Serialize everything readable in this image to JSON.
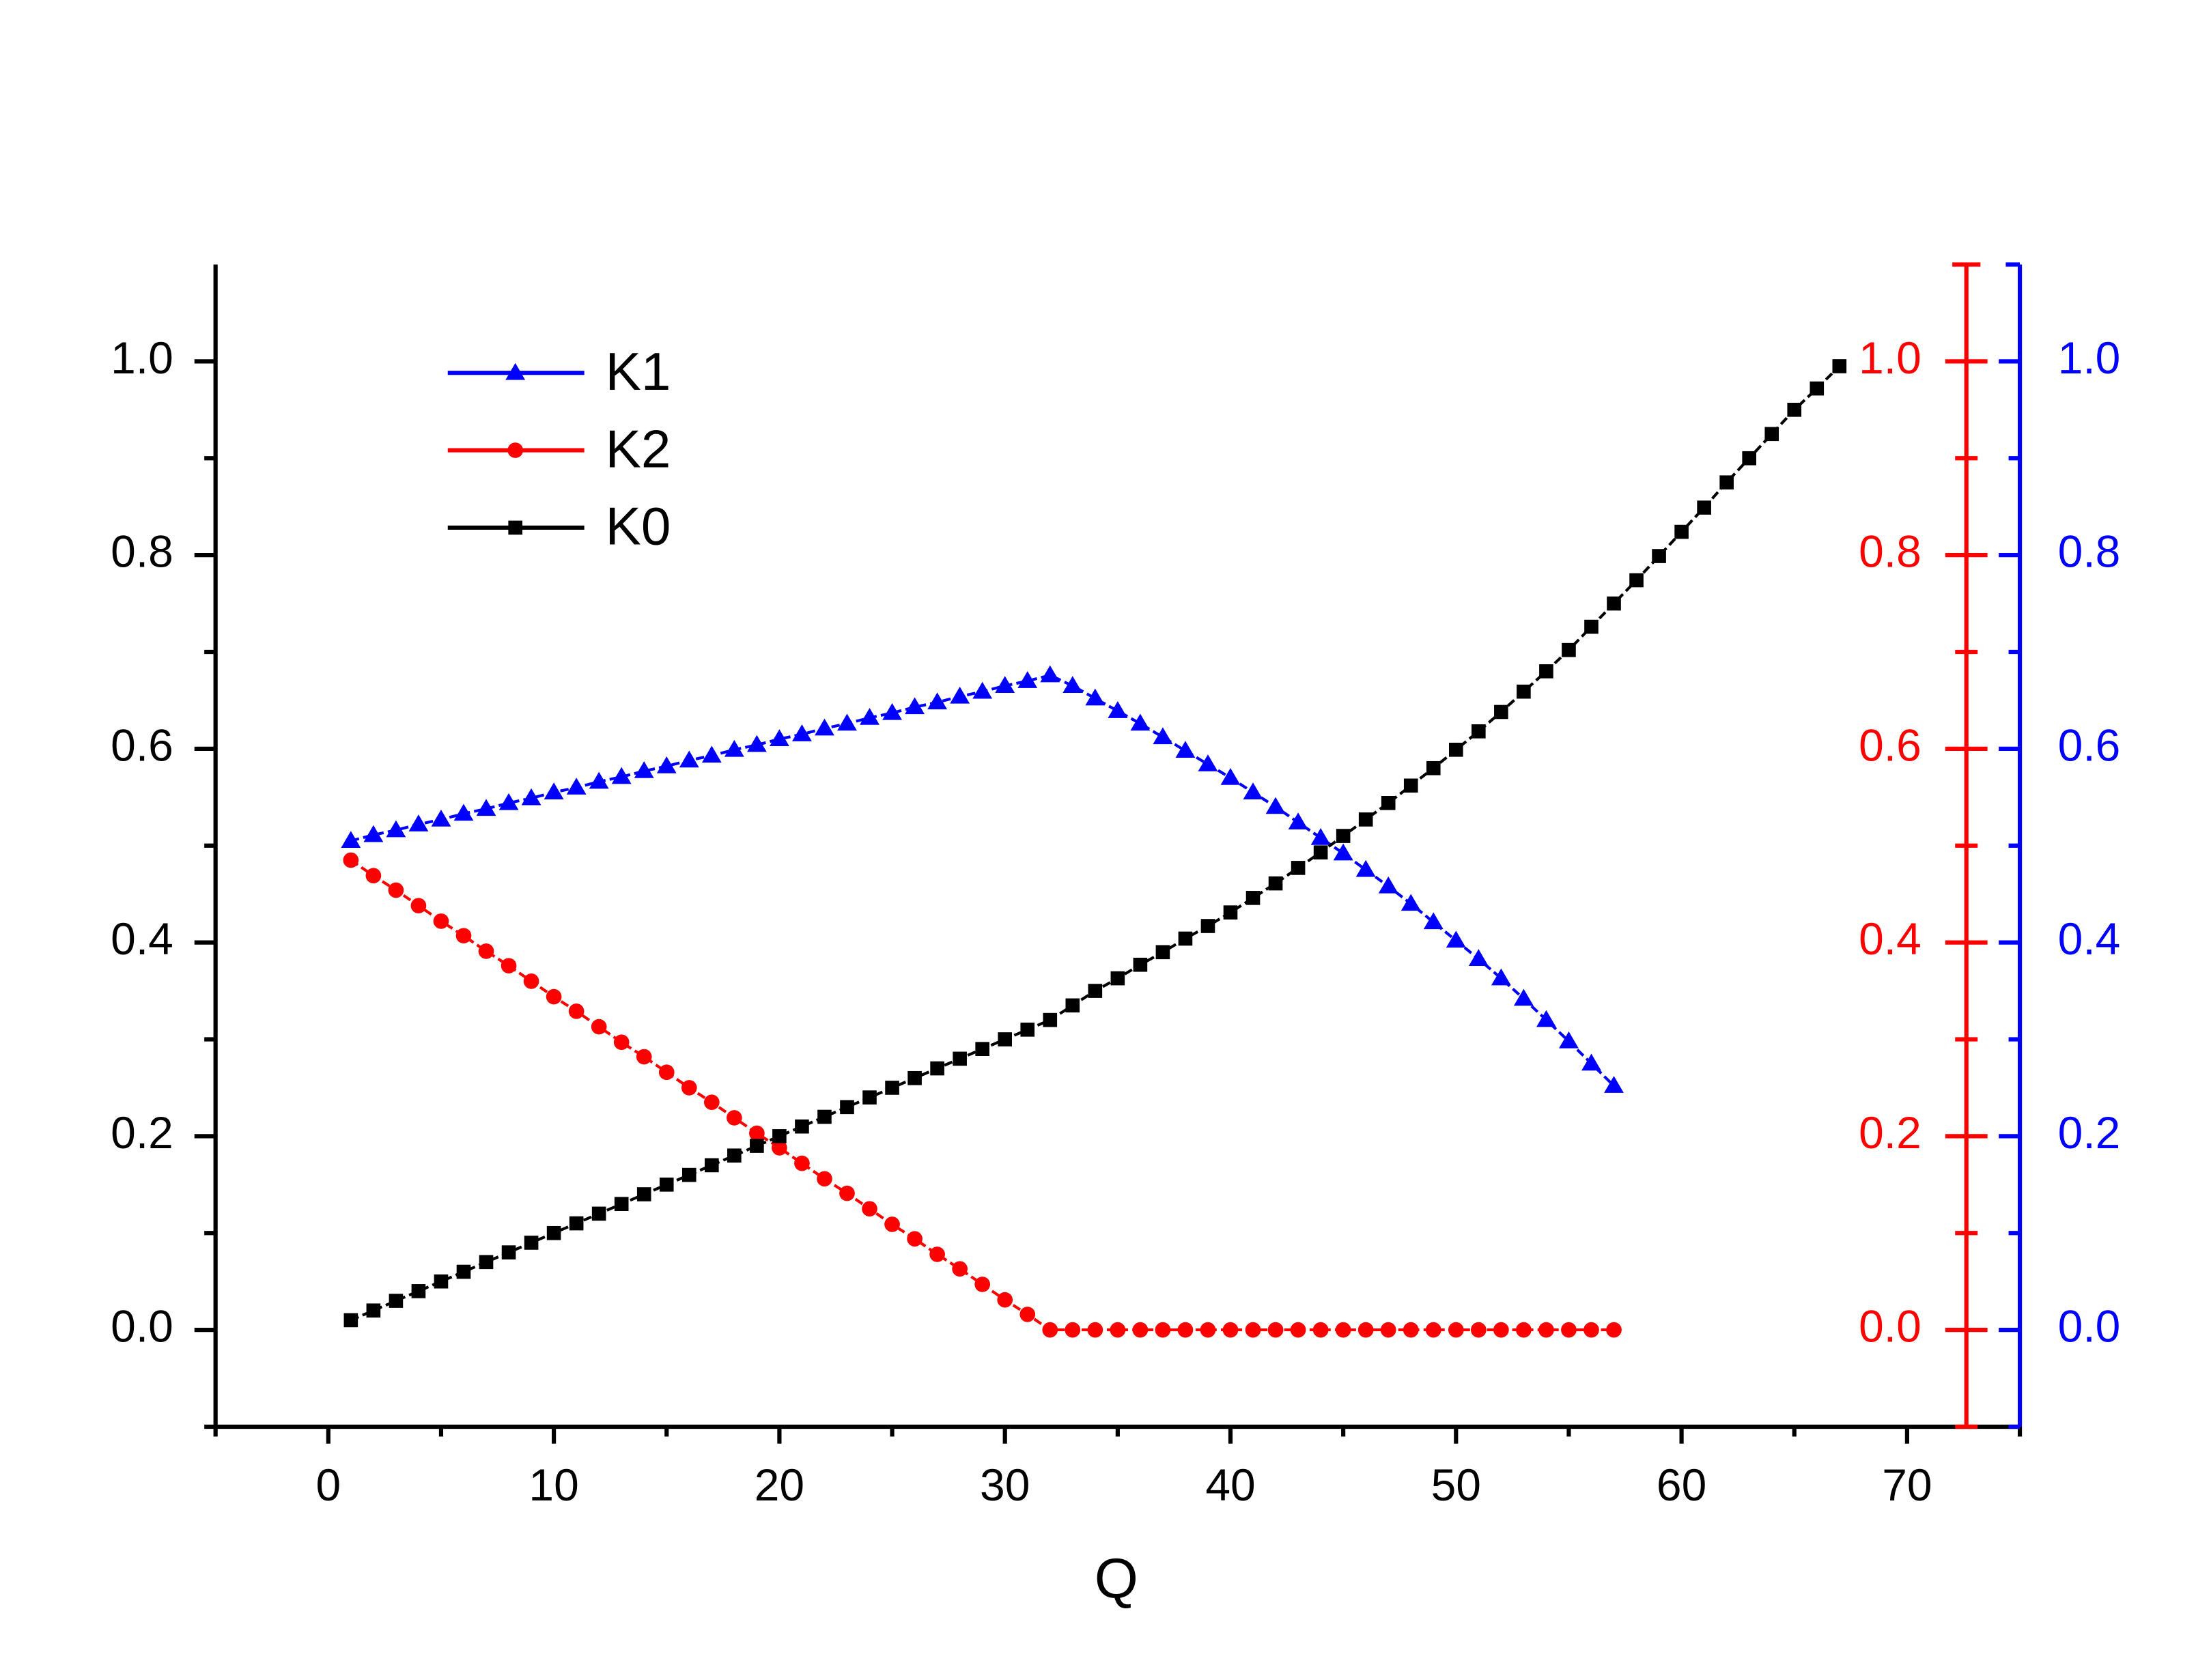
{
  "chart_data": {
    "type": "line",
    "xlabel": "Q",
    "x": [
      1,
      2,
      3,
      4,
      5,
      6,
      7,
      8,
      9,
      10,
      11,
      12,
      13,
      14,
      15,
      16,
      17,
      18,
      19,
      20,
      21,
      22,
      23,
      24,
      25,
      26,
      27,
      28,
      29,
      30,
      31,
      32,
      33,
      34,
      35,
      36,
      37,
      38,
      39,
      40,
      41,
      42,
      43,
      44,
      45,
      46,
      47,
      48,
      49,
      50,
      51,
      52,
      53,
      54,
      55,
      56,
      57,
      58,
      59,
      60,
      61,
      62,
      63,
      64,
      65,
      66,
      67
    ],
    "xlim": [
      -5,
      75
    ],
    "xticks": [
      0,
      10,
      20,
      30,
      40,
      50,
      60,
      70
    ],
    "xminorticks": [
      -5,
      5,
      15,
      25,
      35,
      45,
      55,
      65,
      75
    ],
    "ylim": [
      -0.1,
      1.1
    ],
    "yticks": [
      {
        "value": 0,
        "label": "0.0"
      },
      {
        "value": 0.2,
        "label": "0.2"
      },
      {
        "value": 0.4,
        "label": "0.4"
      },
      {
        "value": 0.6,
        "label": "0.6"
      },
      {
        "value": 0.8,
        "label": "0.8"
      },
      {
        "value": 1,
        "label": "1.0"
      }
    ],
    "yminorticks": [
      -0.1,
      0.1,
      0.3,
      0.5,
      0.7,
      0.9
    ],
    "y2lim": [
      -0.1,
      1.1
    ],
    "y2ticks": [
      {
        "value": 0,
        "label": "0.0"
      },
      {
        "value": 0.2,
        "label": "0.2"
      },
      {
        "value": 0.4,
        "label": "0.4"
      },
      {
        "value": 0.6,
        "label": "0.6"
      },
      {
        "value": 0.8,
        "label": "0.8"
      },
      {
        "value": 1,
        "label": "1.0"
      }
    ],
    "y2minorticks": [
      -0.1,
      0.1,
      0.3,
      0.5,
      0.7,
      0.9
    ],
    "y2color": "#ff0000",
    "y3lim": [
      -0.1,
      1.1
    ],
    "y3ticks": [
      {
        "value": 0,
        "label": "0.0"
      },
      {
        "value": 0.2,
        "label": "0.2"
      },
      {
        "value": 0.4,
        "label": "0.4"
      },
      {
        "value": 0.6,
        "label": "0.6"
      },
      {
        "value": 0.8,
        "label": "0.8"
      },
      {
        "value": 1,
        "label": "1.0"
      }
    ],
    "y3minorticks": [
      -0.1,
      0.1,
      0.3,
      0.5,
      0.7,
      0.9
    ],
    "y3color": "#0000ff",
    "legend": "upper left",
    "series": [
      {
        "name": "K1",
        "color": "#0000ff",
        "marker": "triangle",
        "axis": "y3",
        "values": [
          0.505,
          0.511,
          0.516,
          0.522,
          0.527,
          0.533,
          0.538,
          0.544,
          0.549,
          0.555,
          0.56,
          0.566,
          0.571,
          0.577,
          0.582,
          0.588,
          0.593,
          0.599,
          0.604,
          0.61,
          0.615,
          0.621,
          0.626,
          0.632,
          0.637,
          0.643,
          0.648,
          0.654,
          0.659,
          0.665,
          0.67,
          0.676,
          0.665,
          0.652,
          0.639,
          0.626,
          0.612,
          0.598,
          0.584,
          0.57,
          0.555,
          0.54,
          0.524,
          0.508,
          0.492,
          0.475,
          0.458,
          0.44,
          0.421,
          0.402,
          0.383,
          0.363,
          0.342,
          0.32,
          0.298,
          0.275,
          0.252,
          null,
          null,
          null,
          null,
          null,
          null,
          null,
          null,
          null,
          null
        ]
      },
      {
        "name": "K2",
        "color": "#ff0000",
        "marker": "circle",
        "axis": "y2",
        "values": [
          0.485,
          0.469,
          0.454,
          0.438,
          0.422,
          0.407,
          0.391,
          0.376,
          0.36,
          0.344,
          0.329,
          0.313,
          0.297,
          0.282,
          0.266,
          0.25,
          0.235,
          0.219,
          0.203,
          0.188,
          0.172,
          0.156,
          0.141,
          0.125,
          0.109,
          0.094,
          0.078,
          0.063,
          0.047,
          0.031,
          0.016,
          0,
          0,
          0,
          0,
          0,
          0,
          0,
          0,
          0,
          0,
          0,
          0,
          0,
          0,
          0,
          0,
          0,
          0,
          0,
          0,
          0,
          0,
          0,
          0,
          0,
          0,
          null,
          null,
          null,
          null,
          null,
          null,
          null,
          null,
          null,
          null
        ]
      },
      {
        "name": "K0",
        "color": "#000000",
        "marker": "square",
        "axis": "y",
        "values": [
          0.01,
          0.02,
          0.03,
          0.04,
          0.05,
          0.06,
          0.07,
          0.08,
          0.09,
          0.1,
          0.11,
          0.12,
          0.13,
          0.14,
          0.15,
          0.16,
          0.17,
          0.18,
          0.19,
          0.2,
          0.21,
          0.22,
          0.23,
          0.24,
          0.25,
          0.26,
          0.27,
          0.28,
          0.29,
          0.3,
          0.31,
          0.32,
          0.335,
          0.35,
          0.363,
          0.377,
          0.39,
          0.404,
          0.417,
          0.431,
          0.446,
          0.461,
          0.477,
          0.493,
          0.51,
          0.527,
          0.544,
          0.562,
          0.58,
          0.599,
          0.618,
          0.638,
          0.659,
          0.68,
          0.702,
          0.726,
          0.75,
          0.774,
          0.799,
          0.824,
          0.849,
          0.875,
          0.9,
          0.925,
          0.95,
          0.972,
          0.995
        ]
      }
    ]
  }
}
